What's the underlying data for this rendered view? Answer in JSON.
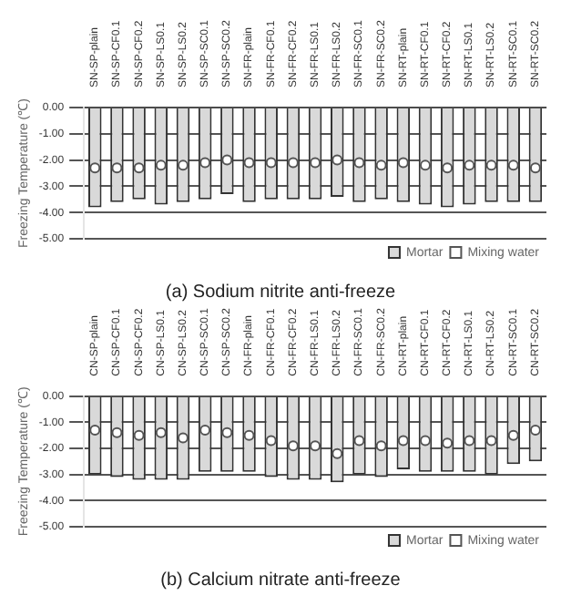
{
  "chart_data": [
    {
      "type": "bar",
      "title": "(a) Sodium nitrite anti-freeze",
      "ylabel": "Freezing Temperature (℃)",
      "categories": [
        "SN-SP-plain",
        "SN-SP-CF0.1",
        "SN-SP-CF0.2",
        "SN-SP-LS0.1",
        "SN-SP-LS0.2",
        "SN-SP-SC0.1",
        "SN-SP-SC0.2",
        "SN-FR-plain",
        "SN-FR-CF0.1",
        "SN-FR-CF0.2",
        "SN-FR-LS0.1",
        "SN-FR-LS0.2",
        "SN-FR-SC0.1",
        "SN-FR-SC0.2",
        "SN-RT-plain",
        "SN-RT-CF0.1",
        "SN-RT-CF0.2",
        "SN-RT-LS0.1",
        "SN-RT-LS0.2",
        "SN-RT-SC0.1",
        "SN-RT-SC0.2"
      ],
      "series": [
        {
          "name": "Mortar",
          "color": "#d9d9d9",
          "values": [
            -3.8,
            -3.6,
            -3.5,
            -3.7,
            -3.6,
            -3.5,
            -3.3,
            -3.6,
            -3.5,
            -3.5,
            -3.5,
            -3.4,
            -3.6,
            -3.5,
            -3.6,
            -3.7,
            -3.8,
            -3.7,
            -3.6,
            -3.6,
            -3.6
          ]
        },
        {
          "name": "Mixing water",
          "type": "scatter",
          "marker": "circle",
          "color": "#ffffff",
          "values": [
            -2.3,
            -2.3,
            -2.3,
            -2.2,
            -2.2,
            -2.1,
            -2.0,
            -2.1,
            -2.1,
            -2.1,
            -2.1,
            -2.0,
            -2.1,
            -2.2,
            -2.1,
            -2.2,
            -2.3,
            -2.2,
            -2.2,
            -2.2,
            -2.3
          ]
        }
      ],
      "ylim": [
        -5,
        0
      ],
      "yticks": [
        {
          "value": 0,
          "label": "0.00"
        },
        {
          "value": -1,
          "label": "-1.00"
        },
        {
          "value": -2,
          "label": "-2.00"
        },
        {
          "value": -3,
          "label": "-3.00"
        },
        {
          "value": -4,
          "label": "-4.00"
        },
        {
          "value": -5,
          "label": "-5.00"
        }
      ],
      "grid": "y",
      "legend": "bottom right"
    },
    {
      "type": "bar",
      "title": "(b) Calcium nitrate anti-freeze",
      "ylabel": "Freezing Temperature (℃)",
      "categories": [
        "CN-SP-plain",
        "CN-SP-CF0.1",
        "CN-SP-CF0.2",
        "CN-SP-LS0.1",
        "CN-SP-LS0.2",
        "CN-SP-SC0.1",
        "CN-SP-SC0.2",
        "CN-FR-plain",
        "CN-FR-CF0.1",
        "CN-FR-CF0.2",
        "CN-FR-LS0.1",
        "CN-FR-LS0.2",
        "CN-FR-SC0.1",
        "CN-FR-SC0.2",
        "CN-RT-plain",
        "CN-RT-CF0.1",
        "CN-RT-CF0.2",
        "CN-RT-LS0.1",
        "CN-RT-LS0.2",
        "CN-RT-SC0.1",
        "CN-RT-SC0.2"
      ],
      "series": [
        {
          "name": "Mortar",
          "color": "#d9d9d9",
          "values": [
            -3.0,
            -3.1,
            -3.2,
            -3.2,
            -3.2,
            -2.9,
            -2.9,
            -2.9,
            -3.1,
            -3.2,
            -3.2,
            -3.3,
            -3.0,
            -3.1,
            -2.8,
            -2.9,
            -2.9,
            -2.9,
            -3.0,
            -2.6,
            -2.5
          ]
        },
        {
          "name": "Mixing water",
          "type": "scatter",
          "marker": "circle",
          "color": "#ffffff",
          "values": [
            -1.3,
            -1.4,
            -1.5,
            -1.4,
            -1.6,
            -1.3,
            -1.4,
            -1.5,
            -1.7,
            -1.9,
            -1.9,
            -2.2,
            -1.7,
            -1.9,
            -1.7,
            -1.7,
            -1.8,
            -1.7,
            -1.7,
            -1.5,
            -1.3
          ]
        }
      ],
      "ylim": [
        -5,
        0
      ],
      "yticks": [
        {
          "value": 0,
          "label": "0.00"
        },
        {
          "value": -1,
          "label": "-1.00"
        },
        {
          "value": -2,
          "label": "-2.00"
        },
        {
          "value": -3,
          "label": "-3.00"
        },
        {
          "value": -4,
          "label": "-4.00"
        },
        {
          "value": -5,
          "label": "-5.00"
        }
      ],
      "grid": "y",
      "legend": "bottom right"
    }
  ]
}
